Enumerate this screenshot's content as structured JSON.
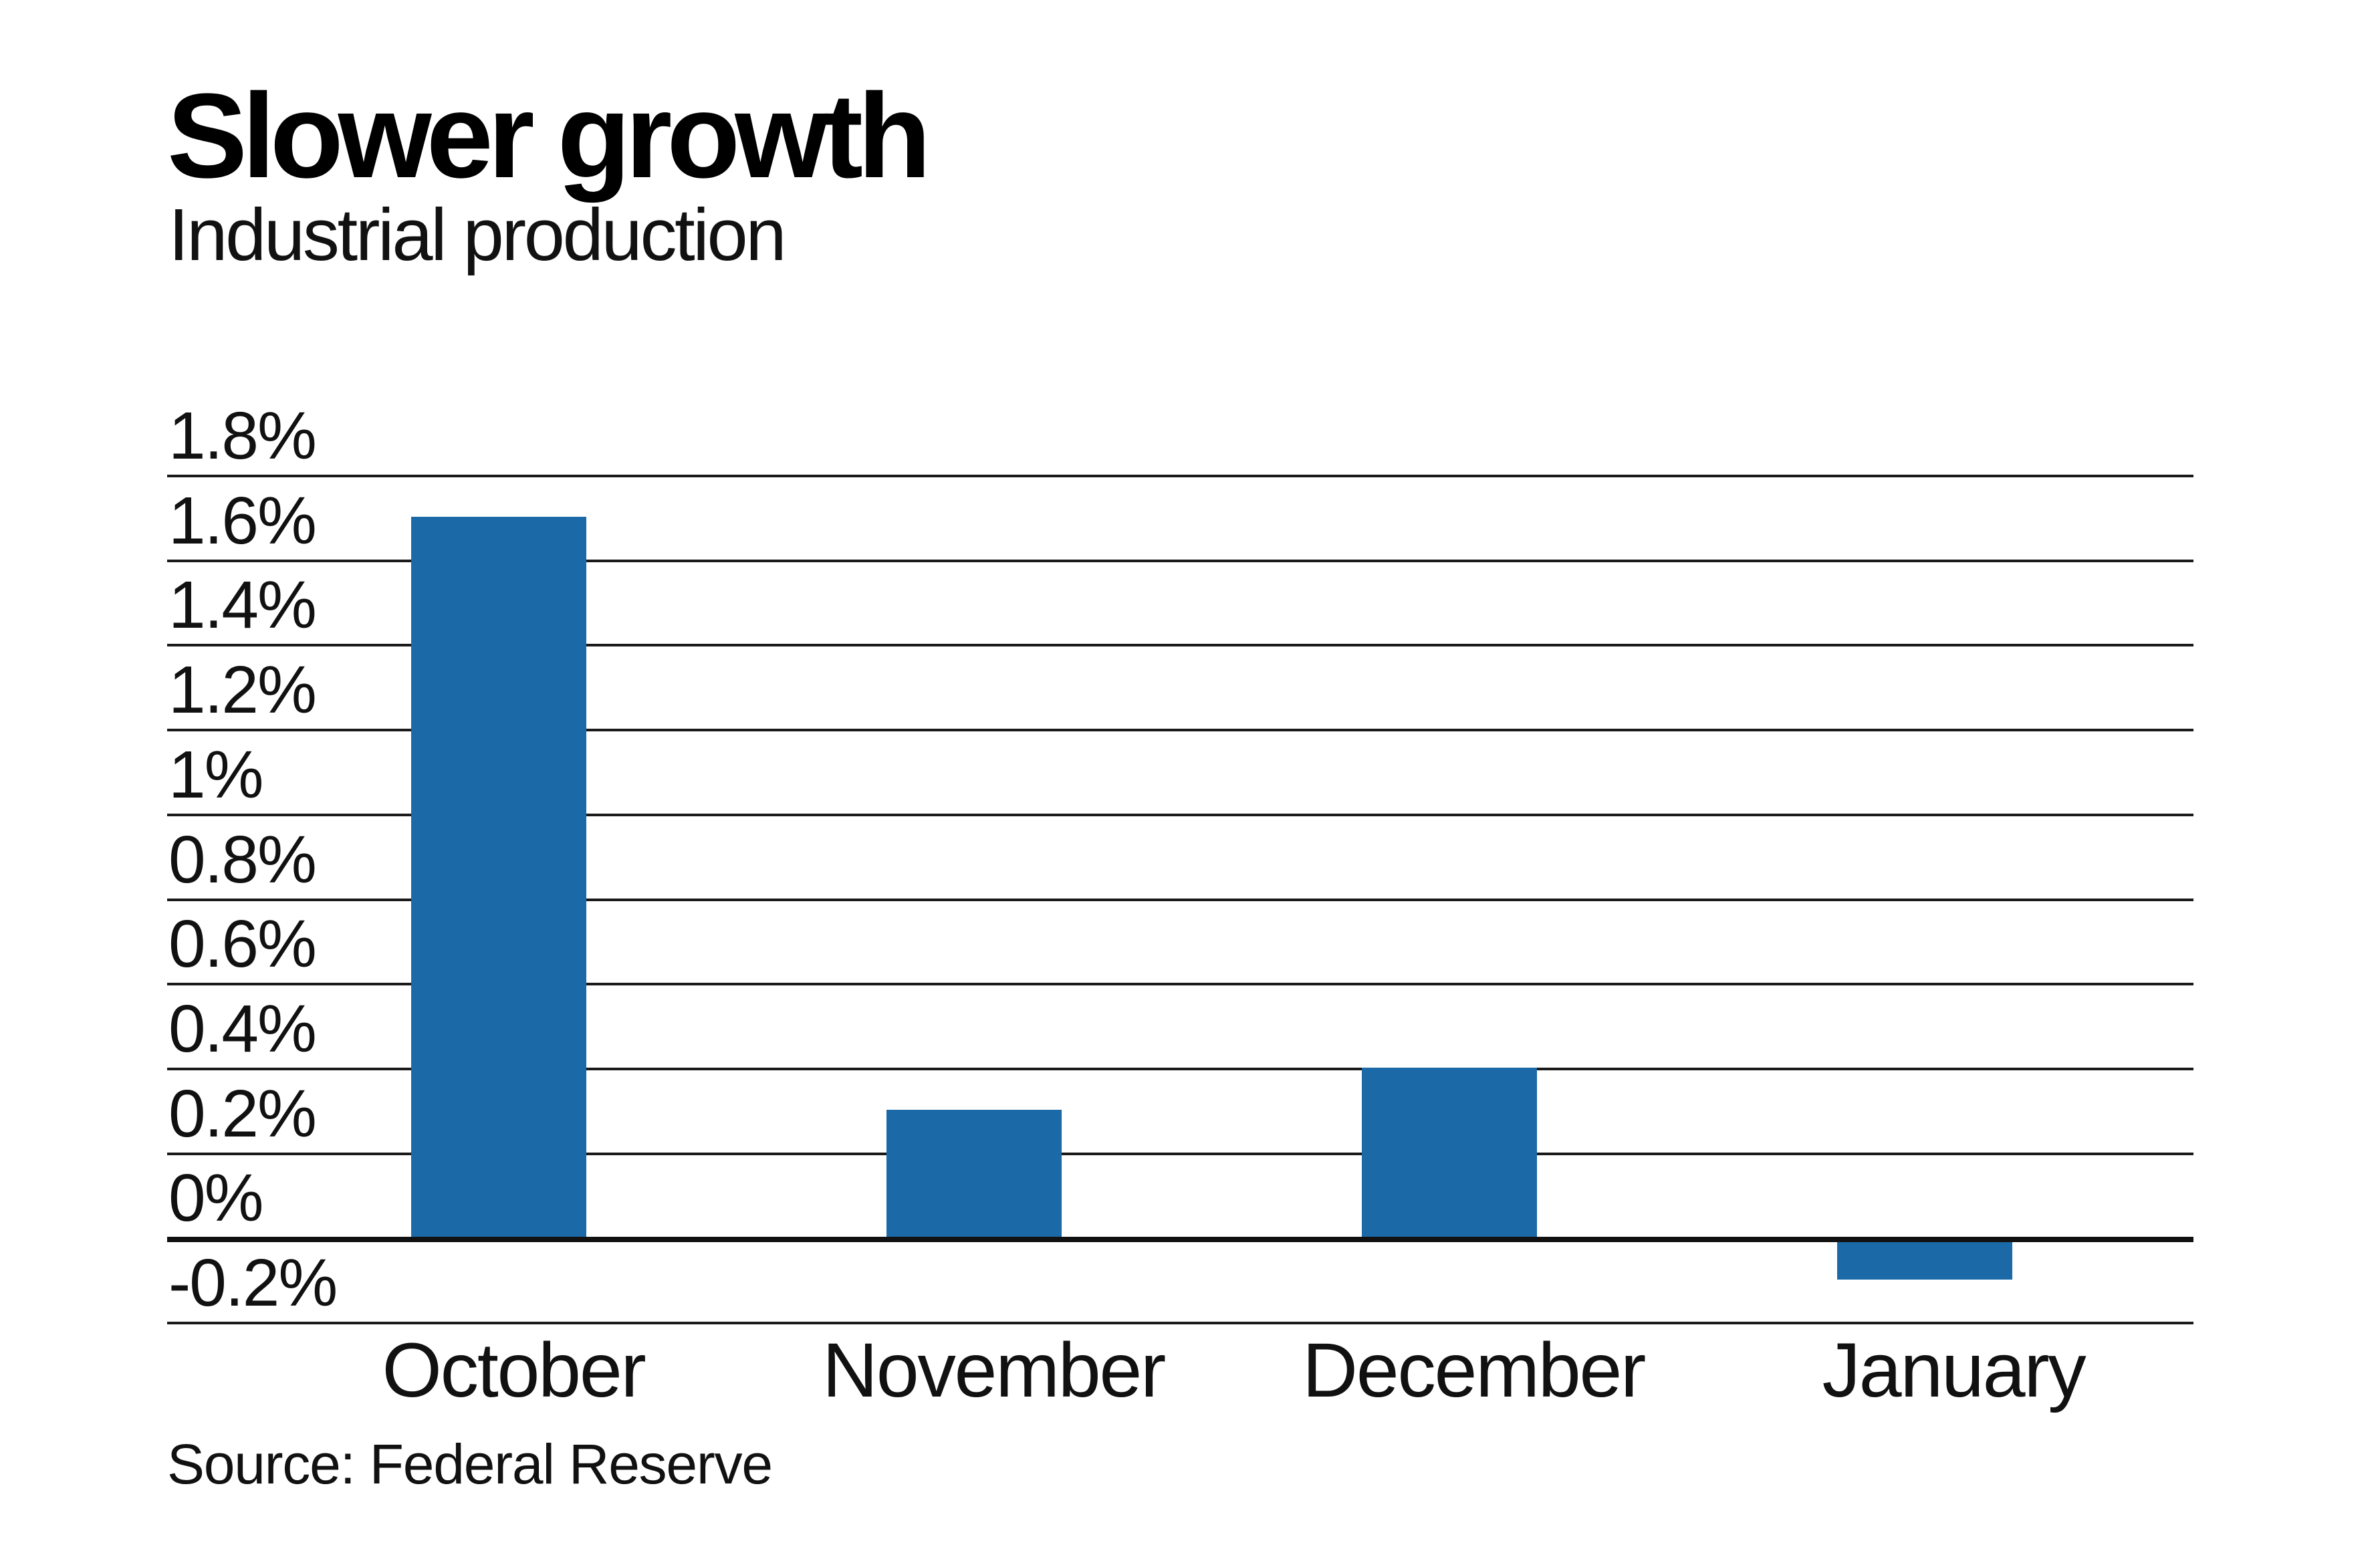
{
  "header": {
    "title": "Slower growth",
    "subtitle": "Industrial production"
  },
  "source": {
    "label": "Source: Federal Reserve"
  },
  "colors": {
    "bar": "#1b69a6",
    "grid": "#1a1a1a",
    "zero_line": "#111111",
    "text": "#111111",
    "background": "#ffffff"
  },
  "chart_data": {
    "type": "bar",
    "title": "Slower growth",
    "subtitle": "Industrial production",
    "categories": [
      "October",
      "November",
      "December",
      "January"
    ],
    "values": [
      1.7,
      0.3,
      0.4,
      -0.1
    ],
    "unit": "%",
    "xlabel": "",
    "ylabel": "",
    "ylim": [
      -0.2,
      1.8
    ],
    "ytick_step": 0.2,
    "ytick_labels": [
      "1.8%",
      "1.6%",
      "1.4%",
      "1.2%",
      "1%",
      "0.8%",
      "0.6%",
      "0.4%",
      "0.2%",
      "0%",
      "-0.2%"
    ],
    "grid": true,
    "legend": false,
    "source_note": "Source: Federal Reserve"
  }
}
